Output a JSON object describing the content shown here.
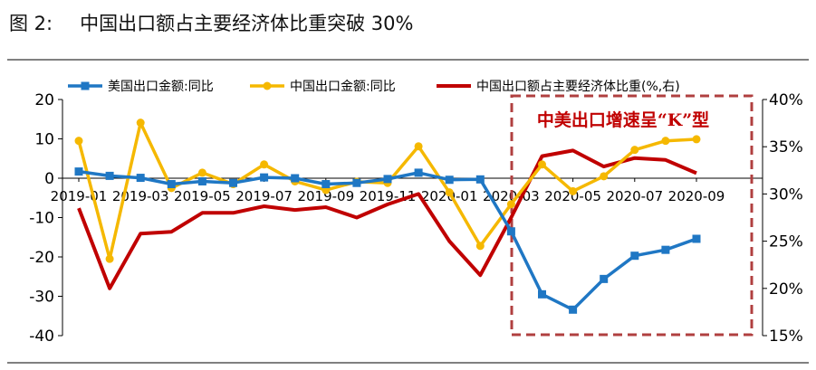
{
  "figure": {
    "label": "图 2:",
    "title": "中国出口额占主要经济体比重突破 30%"
  },
  "chart_data": {
    "type": "line",
    "categories": [
      "2019-01",
      "2019-02",
      "2019-03",
      "2019-04",
      "2019-05",
      "2019-06",
      "2019-07",
      "2019-08",
      "2019-09",
      "2019-10",
      "2019-11",
      "2019-12",
      "2020-01",
      "2020-02",
      "2020-03",
      "2020-04",
      "2020-05",
      "2020-06",
      "2020-07",
      "2020-08",
      "2020-09"
    ],
    "x_tick_labels": [
      "2019-01",
      "2019-03",
      "2019-05",
      "2019-07",
      "2019-09",
      "2019-11",
      "2020-01",
      "2020-03",
      "2020-05",
      "2020-07",
      "2020-09"
    ],
    "y_left": {
      "ylim": [
        -40,
        20
      ],
      "ticks": [
        20,
        10,
        0,
        -10,
        -20,
        -30,
        -40
      ]
    },
    "y_right": {
      "ylim": [
        15,
        40
      ],
      "ticks": [
        "40%",
        "35%",
        "30%",
        "25%",
        "20%",
        "15%"
      ]
    },
    "legend_position": "top",
    "series": [
      {
        "name": "美国出口金额:同比",
        "axis": "left",
        "color": "#1f77c4",
        "marker": "square",
        "values": [
          1.7,
          0.6,
          0.1,
          -1.5,
          -0.8,
          -1.2,
          0.2,
          0.0,
          -1.5,
          -1.2,
          -0.2,
          1.4,
          -0.4,
          -0.3,
          -13.5,
          -29.5,
          -33.4,
          -25.6,
          -19.7,
          -18.2,
          -15.4
        ]
      },
      {
        "name": "中国出口金额:同比",
        "axis": "left",
        "color": "#f5b800",
        "marker": "circle",
        "values": [
          9.5,
          -20.5,
          14.1,
          -2.5,
          1.4,
          -1.5,
          3.5,
          -0.8,
          -3.0,
          -0.9,
          -1.2,
          8.1,
          -3.6,
          -17.2,
          -6.6,
          3.5,
          -3.3,
          0.5,
          7.2,
          9.5,
          9.9
        ]
      },
      {
        "name": "中国出口额占主要经济体比重(%,右)",
        "axis": "right",
        "color": "#c00000",
        "marker": "none",
        "values": [
          28.5,
          20.0,
          25.8,
          26.0,
          28.0,
          28.0,
          28.7,
          28.3,
          28.6,
          27.5,
          28.9,
          30.0,
          25.0,
          21.4,
          27.5,
          34.0,
          34.6,
          32.9,
          33.8,
          33.6,
          32.2
        ]
      }
    ],
    "annotation": "中美出口增速呈“K”型",
    "annotation_color": "#c00000"
  }
}
